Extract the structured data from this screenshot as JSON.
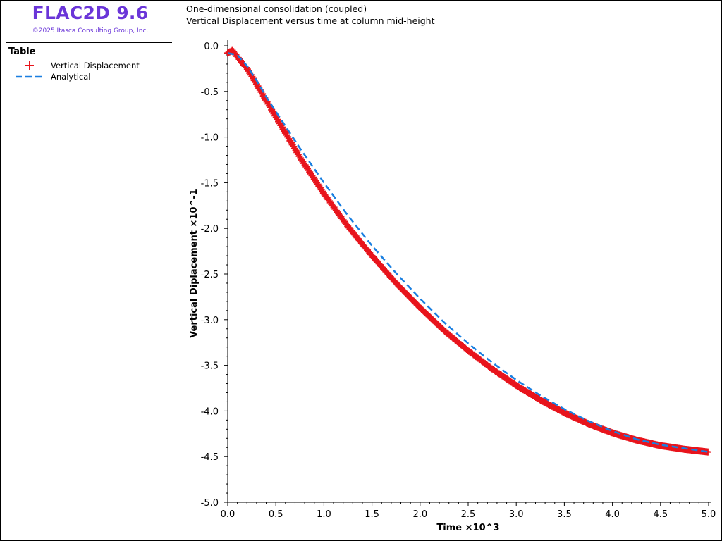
{
  "brand": {
    "title": "FLAC2D 9.6",
    "copyright": "©2025 Itasca Consulting Group, Inc.",
    "title_color": "#6a35d8"
  },
  "legend": {
    "title": "Table",
    "items": [
      {
        "label": "Vertical Displacement",
        "symbol": "plus-marker",
        "color": "#e8141c"
      },
      {
        "label": "Analytical",
        "symbol": "dashed-line",
        "color": "#1a7fe0"
      }
    ]
  },
  "header": {
    "title": "One-dimensional consolidation (coupled)",
    "subtitle": "Vertical Displacement versus time at column mid-height"
  },
  "chart_data": {
    "type": "line",
    "title": "One-dimensional consolidation (coupled)",
    "subtitle": "Vertical Displacement versus time at column mid-height",
    "xlabel": "Time ×10^3",
    "ylabel": "Vertical Diplacement  ×10^-1",
    "xlim": [
      0,
      5
    ],
    "ylim": [
      -5,
      0
    ],
    "xticks": [
      "0.0",
      "0.5",
      "1.0",
      "1.5",
      "2.0",
      "2.5",
      "3.0",
      "3.5",
      "4.0",
      "4.5",
      "5.0"
    ],
    "yticks": [
      "0.0",
      "-0.5",
      "-1.0",
      "-1.5",
      "-2.0",
      "-2.5",
      "-3.0",
      "-3.5",
      "-4.0",
      "-4.5",
      "-5.0"
    ],
    "grid": false,
    "legend_position": "left-panel",
    "series": [
      {
        "name": "Vertical Displacement",
        "style": "markers",
        "marker": "plus",
        "color": "#e8141c",
        "x": [
          0,
          0.05,
          0.1,
          0.2,
          0.3,
          0.4,
          0.5,
          0.75,
          1.0,
          1.25,
          1.5,
          1.75,
          2.0,
          2.25,
          2.5,
          2.75,
          3.0,
          3.25,
          3.5,
          3.75,
          4.0,
          4.25,
          4.5,
          4.75,
          5.0
        ],
        "y": [
          -0.08,
          -0.05,
          -0.12,
          -0.25,
          -0.42,
          -0.6,
          -0.78,
          -1.22,
          -1.62,
          -1.98,
          -2.3,
          -2.6,
          -2.87,
          -3.12,
          -3.34,
          -3.54,
          -3.72,
          -3.88,
          -4.02,
          -4.14,
          -4.24,
          -4.32,
          -4.38,
          -4.42,
          -4.45
        ]
      },
      {
        "name": "Analytical",
        "style": "dashed-line",
        "color": "#1a7fe0",
        "x": [
          0,
          0.1,
          0.2,
          0.3,
          0.4,
          0.5,
          0.75,
          1.0,
          1.25,
          1.5,
          1.75,
          2.0,
          2.25,
          2.5,
          2.75,
          3.0,
          3.25,
          3.5,
          3.75,
          4.0,
          4.25,
          4.5,
          4.75,
          5.0
        ],
        "y": [
          -0.08,
          -0.1,
          -0.22,
          -0.38,
          -0.56,
          -0.72,
          -1.12,
          -1.5,
          -1.86,
          -2.19,
          -2.49,
          -2.77,
          -3.03,
          -3.26,
          -3.47,
          -3.66,
          -3.83,
          -3.98,
          -4.11,
          -4.22,
          -4.31,
          -4.37,
          -4.41,
          -4.45
        ]
      }
    ]
  }
}
